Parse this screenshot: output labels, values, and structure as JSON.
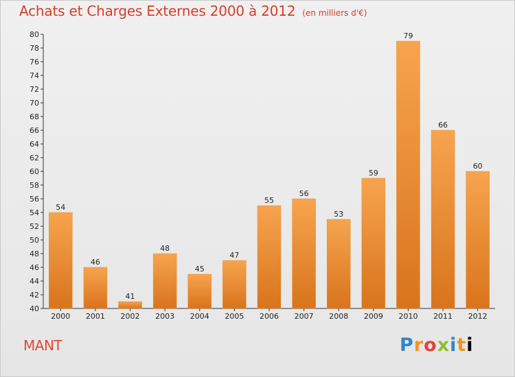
{
  "header": {
    "title": "Achats et Charges Externes 2000 à 2012",
    "unit": "(en milliers d'€)"
  },
  "footer": {
    "commune": "MANT",
    "logo": [
      "P",
      "r",
      "o",
      "x",
      "i",
      "t",
      "i"
    ]
  },
  "colors": {
    "bar_top": "#f7a44f",
    "bar_bottom": "#d8741c",
    "title": "#d13f2a"
  },
  "chart_data": {
    "type": "bar",
    "title": "Achats et Charges Externes 2000 à 2012",
    "subtitle": "(en milliers d'€)",
    "xlabel": "",
    "ylabel": "",
    "categories": [
      "2000",
      "2001",
      "2002",
      "2003",
      "2004",
      "2005",
      "2006",
      "2007",
      "2008",
      "2009",
      "2010",
      "2011",
      "2012"
    ],
    "values": [
      54,
      46,
      41,
      48,
      45,
      47,
      55,
      56,
      53,
      59,
      79,
      66,
      60
    ],
    "ylim": [
      40,
      80
    ],
    "yticks": [
      40,
      42,
      44,
      46,
      48,
      50,
      52,
      54,
      56,
      58,
      60,
      62,
      64,
      66,
      68,
      70,
      72,
      74,
      76,
      78,
      80
    ],
    "grid": false,
    "legend": "none"
  }
}
